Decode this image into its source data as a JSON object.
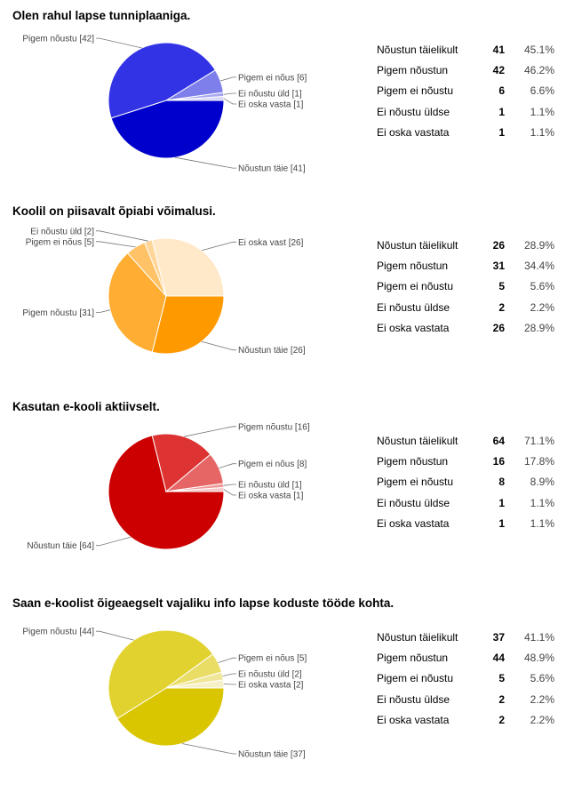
{
  "chart_data": [
    {
      "type": "pie",
      "title": "Olen rahul lapse tunniplaaniga.",
      "categories": [
        "Nõustun täielikult",
        "Pigem nõustun",
        "Pigem ei nõustu",
        "Ei nõustu üldse",
        "Ei oska vastata"
      ],
      "slice_labels": [
        "Nõustun täie [41]",
        "Pigem nõustu [42]",
        "Pigem ei nõus [6]",
        "Ei nõustu üld [1]",
        "Ei oska vasta [1]"
      ],
      "values": [
        41,
        42,
        6,
        1,
        1
      ],
      "percents": [
        "45.1%",
        "46.2%",
        "6.6%",
        "1.1%",
        "1.1%"
      ],
      "colors": [
        "#0000cc",
        "#3333e6",
        "#7f7feb",
        "#a8a8f0",
        "#d6d6f7"
      ]
    },
    {
      "type": "pie",
      "title": "Koolil on piisavalt õpiabi võimalusi.",
      "categories": [
        "Nõustun täielikult",
        "Pigem nõustun",
        "Pigem ei nõustu",
        "Ei nõustu üldse",
        "Ei oska vastata"
      ],
      "slice_labels": [
        "Nõustun täie [26]",
        "Pigem nõustu [31]",
        "Pigem ei nõus [5]",
        "Ei nõustu üld [2]",
        "Ei oska vast [26]"
      ],
      "values": [
        26,
        31,
        5,
        2,
        26
      ],
      "percents": [
        "28.9%",
        "34.4%",
        "5.6%",
        "2.2%",
        "28.9%"
      ],
      "colors": [
        "#ff9900",
        "#ffad33",
        "#ffc266",
        "#ffd699",
        "#ffe9c8"
      ]
    },
    {
      "type": "pie",
      "title": "Kasutan e-kooli aktiivselt.",
      "categories": [
        "Nõustun täielikult",
        "Pigem nõustun",
        "Pigem ei nõustu",
        "Ei nõustu üldse",
        "Ei oska vastata"
      ],
      "slice_labels": [
        "Nõustun täie [64]",
        "Pigem nõustu [16]",
        "Pigem ei nõus [8]",
        "Ei nõustu üld [1]",
        "Ei oska vasta [1]"
      ],
      "values": [
        64,
        16,
        8,
        1,
        1
      ],
      "percents": [
        "71.1%",
        "17.8%",
        "8.9%",
        "1.1%",
        "1.1%"
      ],
      "colors": [
        "#cc0000",
        "#dd3333",
        "#e66666",
        "#ee9999",
        "#f5c6c6"
      ]
    },
    {
      "type": "pie",
      "title": "Saan e-koolist õigeaegselt vajaliku info lapse koduste tööde kohta.",
      "categories": [
        "Nõustun täielikult",
        "Pigem nõustun",
        "Pigem ei nõustu",
        "Ei nõustu üldse",
        "Ei oska vastata"
      ],
      "slice_labels": [
        "Nõustun täie [37]",
        "Pigem nõustu [44]",
        "Pigem ei nõus [5]",
        "Ei nõustu üld [2]",
        "Ei oska vasta [2]"
      ],
      "values": [
        37,
        44,
        5,
        2,
        2
      ],
      "percents": [
        "41.1%",
        "48.9%",
        "5.6%",
        "2.2%",
        "2.2%"
      ],
      "colors": [
        "#d9c600",
        "#e1d230",
        "#e9dd66",
        "#efe699",
        "#f6f0c8"
      ]
    }
  ]
}
